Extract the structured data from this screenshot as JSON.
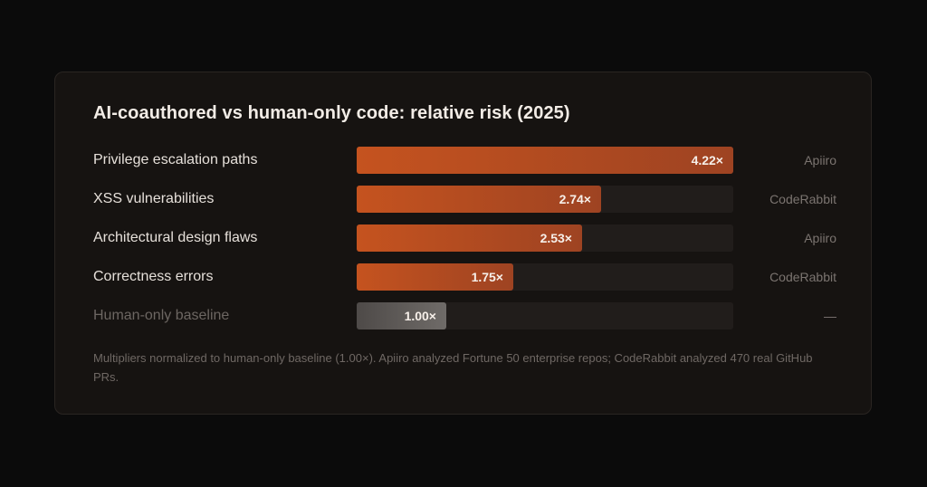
{
  "title": "AI-coauthored vs human-only code: relative risk (2025)",
  "footnote": "Multipliers normalized to human-only baseline (1.00×). Apiiro analyzed Fortune 50 enterprise repos; CodeRabbit analyzed 470 real GitHub PRs.",
  "colors": {
    "background": "#0b0b0b",
    "card": "#161311",
    "bar_accent_start": "#c5531f",
    "bar_accent_end": "#9e4322",
    "baseline_bar": "#5e5a58",
    "track": "#211d1b"
  },
  "chart_data": {
    "type": "bar",
    "orientation": "horizontal",
    "title": "AI-coauthored vs human-only code: relative risk (2025)",
    "xlim": [
      0,
      4.22
    ],
    "categories": [
      "Privilege escalation paths",
      "XSS vulnerabilities",
      "Architectural design flaws",
      "Correctness errors",
      "Human-only baseline"
    ],
    "values": [
      4.22,
      2.74,
      2.53,
      1.75,
      1.0
    ],
    "value_labels": [
      "4.22×",
      "2.74×",
      "2.53×",
      "1.75×",
      "1.00×"
    ],
    "sources": [
      "Apiiro",
      "CodeRabbit",
      "Apiiro",
      "CodeRabbit",
      "—"
    ],
    "baseline_index": 4
  }
}
